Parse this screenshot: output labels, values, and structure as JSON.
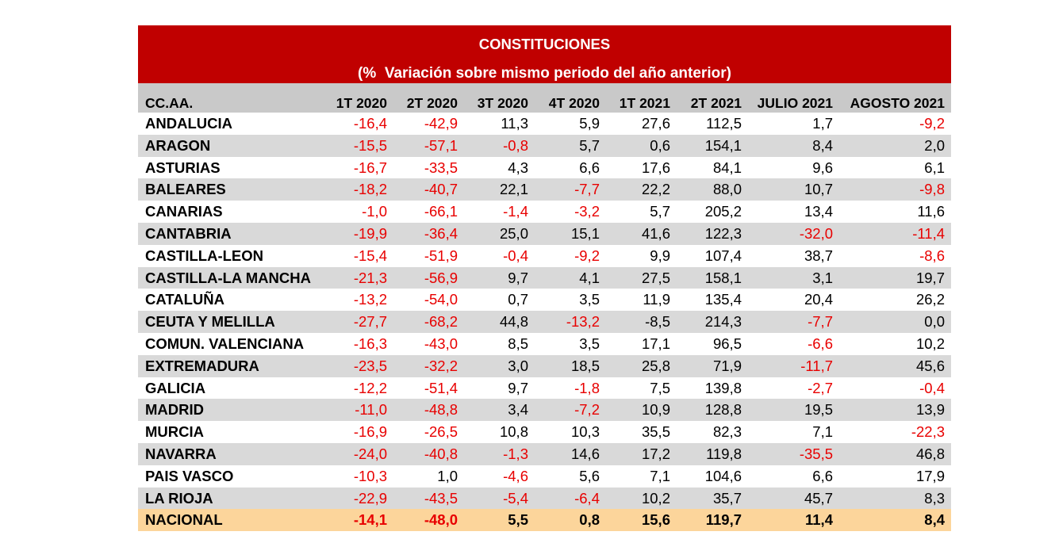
{
  "colors": {
    "header_bg": "#c00000",
    "header_text": "#ffffff",
    "column_header_bg": "#c9c9c9",
    "alt_row_bg": "#d9d9d9",
    "total_row_bg": "#fcd59b",
    "negative_text": "#e80000",
    "text": "#000000"
  },
  "chart_data": {
    "type": "table",
    "title": "CONSTITUCIONES",
    "subtitle": "(%  Variación sobre mismo periodo del año anterior)",
    "columns": [
      "CC.AA.",
      "1T 2020",
      "2T 2020",
      "3T 2020",
      "4T 2020",
      "1T 2021",
      "2T 2021",
      "JULIO 2021",
      "AGOSTO 2021"
    ],
    "rows": [
      {
        "region": "ANDALUCIA",
        "values": [
          "-16,4",
          "-42,9",
          "11,3",
          "5,9",
          "27,6",
          "112,5",
          "1,7",
          "-9,2"
        ]
      },
      {
        "region": "ARAGON",
        "values": [
          "-15,5",
          "-57,1",
          "-0,8",
          "5,7",
          "0,6",
          "154,1",
          "8,4",
          "2,0"
        ]
      },
      {
        "region": "ASTURIAS",
        "values": [
          "-16,7",
          "-33,5",
          "4,3",
          "6,6",
          "17,6",
          "84,1",
          "9,6",
          "6,1"
        ]
      },
      {
        "region": "BALEARES",
        "values": [
          "-18,2",
          "-40,7",
          "22,1",
          "-7,7",
          "22,2",
          "88,0",
          "10,7",
          "-9,8"
        ]
      },
      {
        "region": "CANARIAS",
        "values": [
          "-1,0",
          "-66,1",
          "-1,4",
          "-3,2",
          "5,7",
          "205,2",
          "13,4",
          "11,6"
        ]
      },
      {
        "region": "CANTABRIA",
        "values": [
          "-19,9",
          "-36,4",
          "25,0",
          "15,1",
          "41,6",
          "122,3",
          "-32,0",
          "-11,4"
        ]
      },
      {
        "region": "CASTILLA-LEON",
        "values": [
          "-15,4",
          "-51,9",
          "-0,4",
          "-9,2",
          "9,9",
          "107,4",
          "38,7",
          "-8,6"
        ]
      },
      {
        "region": "CASTILLA-LA MANCHA",
        "values": [
          "-21,3",
          "-56,9",
          "9,7",
          "4,1",
          "27,5",
          "158,1",
          "3,1",
          "19,7"
        ]
      },
      {
        "region": "CATALUÑA",
        "values": [
          "-13,2",
          "-54,0",
          "0,7",
          "3,5",
          "11,9",
          "135,4",
          "20,4",
          "26,2"
        ]
      },
      {
        "region": "CEUTA Y MELILLA",
        "values": [
          "-27,7",
          "-68,2",
          "44,8",
          "-13,2",
          "-8,5",
          "214,3",
          "-7,7",
          "0,0"
        ],
        "black_negatives": [
          4
        ]
      },
      {
        "region": "COMUN. VALENCIANA",
        "values": [
          "-16,3",
          "-43,0",
          "8,5",
          "3,5",
          "17,1",
          "96,5",
          "-6,6",
          "10,2"
        ]
      },
      {
        "region": "EXTREMADURA",
        "values": [
          "-23,5",
          "-32,2",
          "3,0",
          "18,5",
          "25,8",
          "71,9",
          "-11,7",
          "45,6"
        ]
      },
      {
        "region": "GALICIA",
        "values": [
          "-12,2",
          "-51,4",
          "9,7",
          "-1,8",
          "7,5",
          "139,8",
          "-2,7",
          "-0,4"
        ]
      },
      {
        "region": "MADRID",
        "values": [
          "-11,0",
          "-48,8",
          "3,4",
          "-7,2",
          "10,9",
          "128,8",
          "19,5",
          "13,9"
        ]
      },
      {
        "region": "MURCIA",
        "values": [
          "-16,9",
          "-26,5",
          "10,8",
          "10,3",
          "35,5",
          "82,3",
          "7,1",
          "-22,3"
        ]
      },
      {
        "region": "NAVARRA",
        "values": [
          "-24,0",
          "-40,8",
          "-1,3",
          "14,6",
          "17,2",
          "119,8",
          "-35,5",
          "46,8"
        ]
      },
      {
        "region": "PAIS VASCO",
        "values": [
          "-10,3",
          "1,0",
          "-4,6",
          "5,6",
          "7,1",
          "104,6",
          "6,6",
          "17,9"
        ]
      },
      {
        "region": "LA RIOJA",
        "values": [
          "-22,9",
          "-43,5",
          "-5,4",
          "-6,4",
          "10,2",
          "35,7",
          "45,7",
          "8,3"
        ]
      }
    ],
    "total": {
      "region": "NACIONAL",
      "values": [
        "-14,1",
        "-48,0",
        "5,5",
        "0,8",
        "15,6",
        "119,7",
        "11,4",
        "8,4"
      ]
    }
  }
}
